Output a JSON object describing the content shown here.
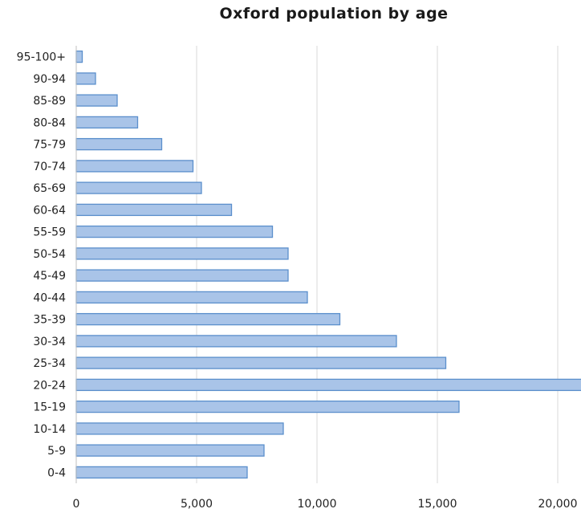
{
  "chart_data": {
    "type": "bar",
    "orientation": "horizontal",
    "title": "Oxford population by age",
    "xlabel": "",
    "ylabel": "",
    "categories": [
      "0-4",
      "5-9",
      "10-14",
      "15-19",
      "20-24",
      "25-34",
      "30-34",
      "35-39",
      "40-44",
      "45-49",
      "50-54",
      "55-59",
      "60-64",
      "65-69",
      "70-74",
      "75-79",
      "80-84",
      "85-89",
      "90-94",
      "95-100+"
    ],
    "values": [
      7100,
      7800,
      8600,
      15900,
      21200,
      15350,
      13300,
      10950,
      9600,
      8800,
      8800,
      8150,
      6450,
      5200,
      4850,
      3550,
      2550,
      1700,
      800,
      250
    ],
    "xlim": [
      0,
      21000
    ],
    "x_ticks": [
      0,
      5000,
      10000,
      15000,
      20000
    ],
    "x_tick_labels": [
      "0",
      "5,000",
      "10,000",
      "15,000",
      "20,000"
    ],
    "grid": "vertical",
    "legend": "none",
    "colors": {
      "bar_fill": "#a9c4e8",
      "bar_stroke": "#5b8fcc",
      "grid": "#d9d9d9",
      "axis": "#bfbfbf"
    }
  }
}
